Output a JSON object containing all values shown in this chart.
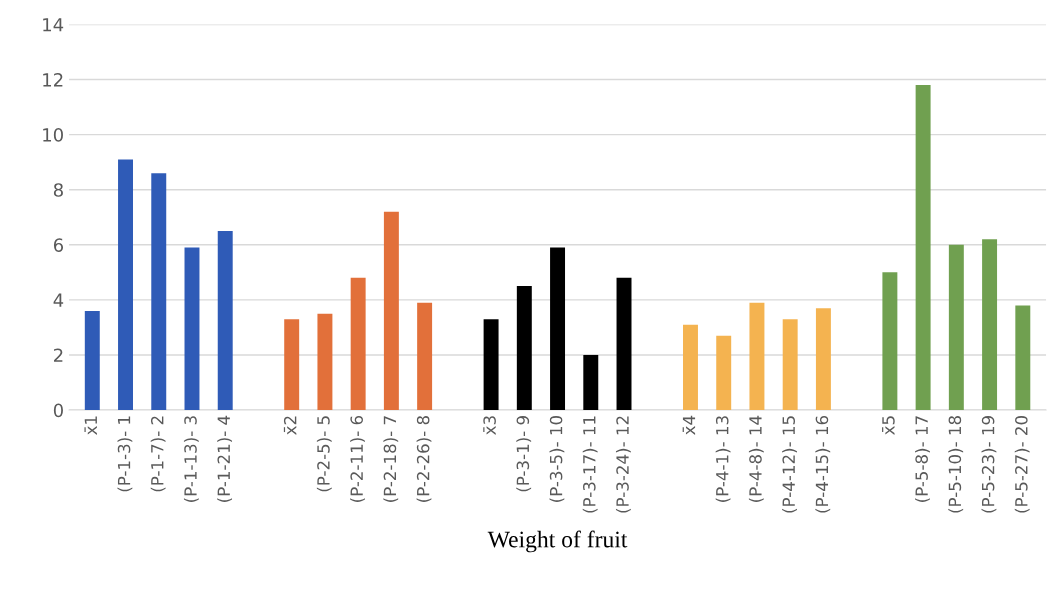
{
  "chart_data": {
    "type": "bar",
    "xlabel": "Weight of fruit",
    "categories": [
      "x̄1",
      "(P-1-3)- 1",
      "(P-1-7)- 2",
      "(P-1-13)- 3",
      "(P-1-21)- 4",
      null,
      "x̄2",
      "(P-2-5)- 5",
      "(P-2-11)- 6",
      "(P-2-18)- 7",
      "(P-2-26)- 8",
      null,
      "x̄3",
      "(P-3-1)- 9",
      "(P-3-5)- 10",
      "(P-3-17)- 11",
      "(P-3-24)- 12",
      null,
      "x̄4",
      "(P-4-1)- 13",
      "(P-4-8)- 14",
      "(P-4-12)- 15",
      "(P-4-15)- 16",
      null,
      "x̄5",
      "(P-5-8)- 17",
      "(P-5-10)- 18",
      "(P-5-23)- 19",
      "(P-5-27)- 20"
    ],
    "values": [
      3.6,
      9.1,
      8.6,
      5.9,
      6.5,
      null,
      3.3,
      3.5,
      4.8,
      7.2,
      3.9,
      null,
      3.3,
      4.5,
      5.9,
      2.0,
      4.8,
      null,
      3.1,
      2.7,
      3.9,
      3.3,
      3.7,
      null,
      5.0,
      11.8,
      6.0,
      6.2,
      3.8
    ],
    "colors": [
      "#2f5bb7",
      "#2f5bb7",
      "#2f5bb7",
      "#2f5bb7",
      "#2f5bb7",
      null,
      "#e2703a",
      "#e2703a",
      "#e2703a",
      "#e2703a",
      "#e2703a",
      null,
      "#000000",
      "#000000",
      "#000000",
      "#000000",
      "#000000",
      null,
      "#f4b350",
      "#f4b350",
      "#f4b350",
      "#f4b350",
      "#f4b350",
      null,
      "#70a050",
      "#70a050",
      "#70a050",
      "#70a050",
      "#70a050"
    ],
    "ylim": [
      0,
      14
    ],
    "yticks": [
      0,
      2,
      4,
      6,
      8,
      10,
      12,
      14
    ],
    "grid": "y"
  }
}
